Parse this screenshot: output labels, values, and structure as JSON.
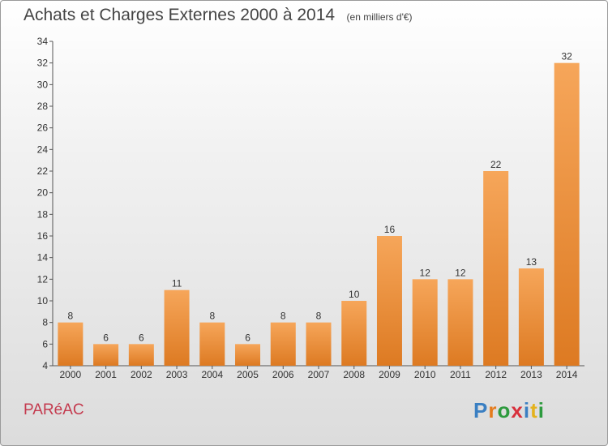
{
  "header": {
    "title": "Achats et Charges Externes 2000 à 2014",
    "unit": "(en milliers d'€)"
  },
  "footer": {
    "commune": "PARéAC",
    "brand_letters": [
      {
        "ch": "P",
        "color": "#3a7fc2"
      },
      {
        "ch": "r",
        "color": "#e47b1c"
      },
      {
        "ch": "o",
        "color": "#2d9a3e"
      },
      {
        "ch": "x",
        "color": "#d8303c"
      },
      {
        "ch": "i",
        "color": "#3a7fc2"
      },
      {
        "ch": "t",
        "color": "#e4b21c"
      },
      {
        "ch": "i",
        "color": "#2d9a3e"
      }
    ]
  },
  "colors": {
    "bar_top": "#f6a65a",
    "bar_bottom": "#dd7a22",
    "axis": "#555555",
    "text": "#333333",
    "title": "#444444",
    "commune": "#c43a4e"
  },
  "chart_data": {
    "type": "bar",
    "categories": [
      "2000",
      "2001",
      "2002",
      "2003",
      "2004",
      "2005",
      "2006",
      "2007",
      "2008",
      "2009",
      "2010",
      "2011",
      "2012",
      "2013",
      "2014"
    ],
    "values": [
      8,
      6,
      6,
      11,
      8,
      6,
      8,
      8,
      10,
      16,
      12,
      12,
      22,
      13,
      32
    ],
    "ylim": [
      4,
      34
    ],
    "yticks": [
      4,
      6,
      8,
      10,
      12,
      14,
      16,
      18,
      20,
      22,
      24,
      26,
      28,
      30,
      32,
      34
    ],
    "grid": false,
    "title": "Achats et Charges Externes 2000 à 2014",
    "xlabel": "",
    "ylabel": ""
  }
}
